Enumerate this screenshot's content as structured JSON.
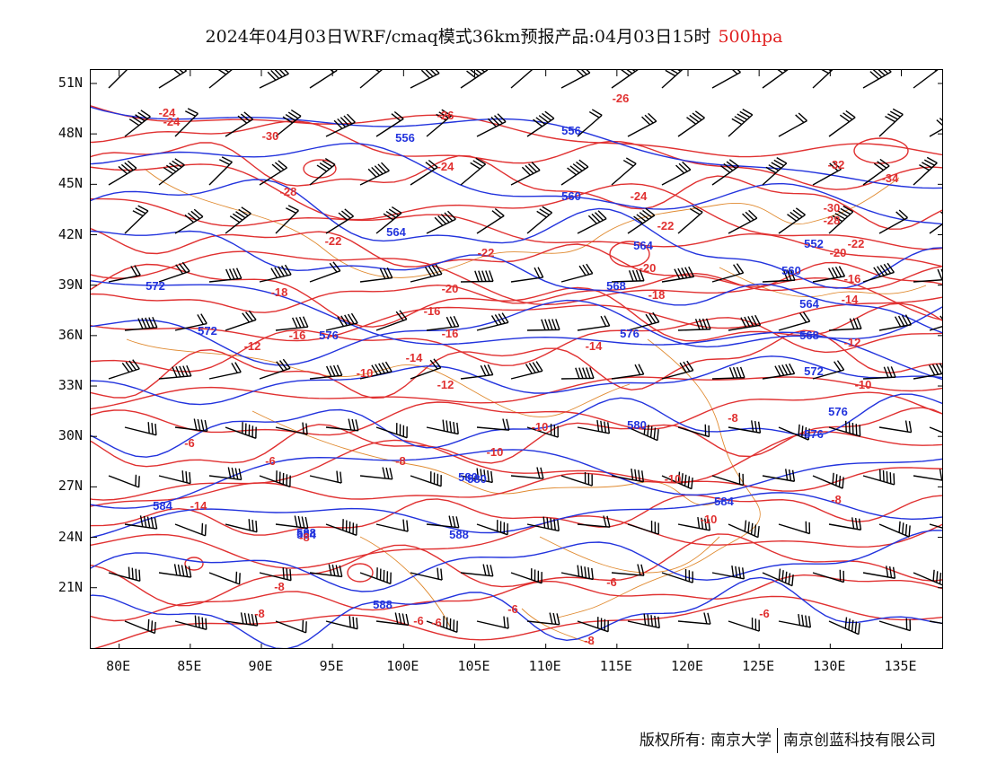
{
  "title": {
    "text": "2024年04月03日WRF/cmaq模式36km预报产品:04月03日15时",
    "level": "500hpa"
  },
  "colors": {
    "geopotential": "#2233dd",
    "temperature": "#e03030",
    "wind": "#000000",
    "border": "#e08a30"
  },
  "map": {
    "lon_range": [
      78,
      138
    ],
    "lat_range": [
      17.3,
      51.8
    ],
    "projection": "equirectangular"
  },
  "axes": {
    "y_ticks": [
      "51N",
      "48N",
      "45N",
      "42N",
      "39N",
      "36N",
      "33N",
      "30N",
      "27N",
      "24N",
      "21N"
    ],
    "x_ticks": [
      "80E",
      "85E",
      "90E",
      "95E",
      "100E",
      "105E",
      "110E",
      "115E",
      "120E",
      "125E",
      "130E",
      "135E"
    ]
  },
  "contour_labels": {
    "geopotential": [
      "556",
      "556",
      "560",
      "564",
      "564",
      "568",
      "572",
      "572",
      "576",
      "576",
      "580",
      "580",
      "584",
      "584",
      "588",
      "588",
      "552",
      "560",
      "564",
      "568",
      "572",
      "576",
      "576",
      "580",
      "584",
      "588"
    ],
    "temperature": [
      "-24",
      "-30",
      "-28",
      "-26",
      "-24",
      "-26",
      "-24",
      "-22",
      "-22",
      "-22",
      "-20",
      "-20",
      "-18",
      "-18",
      "-16",
      "-16",
      "-16",
      "-14",
      "-14",
      "-12",
      "-12",
      "-10",
      "-10",
      "-10",
      "-8",
      "-8",
      "-8",
      "-6",
      "-6",
      "-6",
      "-6",
      "-8",
      "-32",
      "-34",
      "-30",
      "-28",
      "-22",
      "-20",
      "-16",
      "-14",
      "-12",
      "-10",
      "-8",
      "-6",
      "-14",
      "-10",
      "-10",
      "-8",
      "-8",
      "-6",
      "-6",
      "-24"
    ]
  },
  "footer": {
    "left": "版权所有: 南京大学",
    "right": "南京创蓝科技有限公司"
  }
}
